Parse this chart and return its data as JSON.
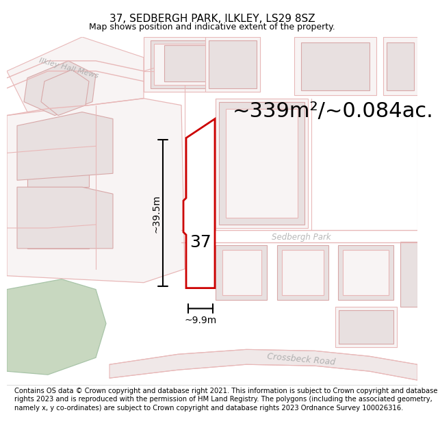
{
  "title": "37, SEDBERGH PARK, ILKLEY, LS29 8SZ",
  "subtitle": "Map shows position and indicative extent of the property.",
  "area_text": "~339m²/~0.084ac.",
  "label_37": "37",
  "dim_vertical": "~39.5m",
  "dim_horizontal": "~9.9m",
  "road_label": "Crossbeck Road",
  "street_label": "Sedbergh Park",
  "mews_label": "Ilkley Hall Mews",
  "footer": "Contains OS data © Crown copyright and database right 2021. This information is subject to Crown copyright and database rights 2023 and is reproduced with the permission of HM Land Registry. The polygons (including the associated geometry, namely x, y co-ordinates) are subject to Crown copyright and database rights 2023 Ordnance Survey 100026316.",
  "highlight_color": "#cc0000",
  "road_color": "#e8b8b8",
  "bld_edge": "#d8a8a8",
  "bld_fill": "#e8e0e0",
  "green_edge": "#a8c4a8",
  "green_fill": "#c8d8c0",
  "map_bg": "#f8f4f4",
  "title_fontsize": 11,
  "subtitle_fontsize": 9,
  "area_fontsize": 22,
  "label_fontsize": 18,
  "dim_fontsize": 10,
  "footer_fontsize": 7.2,
  "road_label_fontsize": 9,
  "street_label_fontsize": 8.5,
  "mews_label_fontsize": 8
}
